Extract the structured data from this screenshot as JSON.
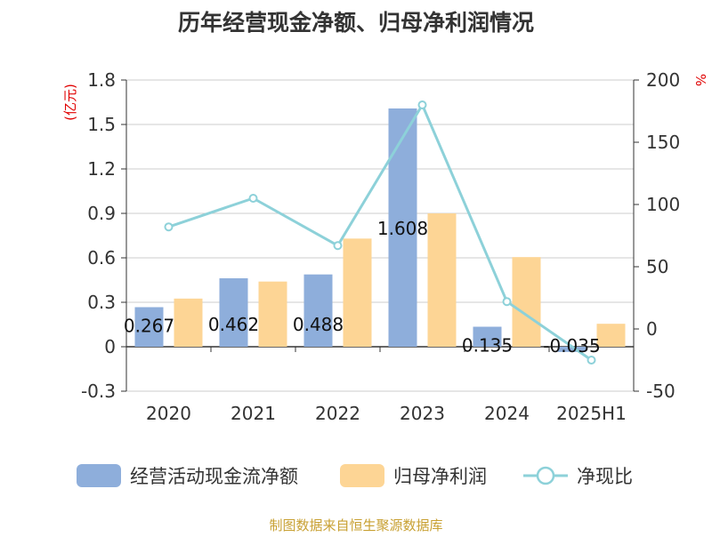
{
  "chart_data": {
    "type": "bar",
    "title": "历年经营现金净额、归母净利润情况",
    "categories": [
      "2020",
      "2021",
      "2022",
      "2023",
      "2024",
      "2025H1"
    ],
    "left_unit": "(亿元)",
    "right_unit": "%",
    "y_left": {
      "min": -0.3,
      "max": 1.8,
      "ticks": [
        "1.8",
        "1.5",
        "1.2",
        "0.9",
        "0.6",
        "0.3",
        "0",
        "-0.3"
      ]
    },
    "y_right": {
      "min": -50,
      "max": 200,
      "ticks": [
        "200",
        "150",
        "100",
        "50",
        "0",
        "-50"
      ]
    },
    "grid": true,
    "legend_position": "bottom",
    "series": [
      {
        "name": "经营活动现金流净额",
        "type": "bar",
        "axis": "left",
        "color": "#8eaedb",
        "values": [
          0.267,
          0.462,
          0.488,
          1.608,
          0.135,
          -0.035
        ],
        "labels": [
          "0.267",
          "0.462",
          "0.488",
          "1.608",
          "0.135",
          "-0.035"
        ]
      },
      {
        "name": "归母净利润",
        "type": "bar",
        "axis": "left",
        "color": "#fdd595",
        "values": [
          0.325,
          0.44,
          0.73,
          0.9,
          0.605,
          0.155
        ]
      },
      {
        "name": "净现比",
        "type": "line",
        "axis": "right",
        "color": "#8dd1d9",
        "values": [
          82,
          105,
          67,
          180,
          22,
          -25
        ]
      }
    ],
    "source": "制图数据来自恒生聚源数据库"
  }
}
